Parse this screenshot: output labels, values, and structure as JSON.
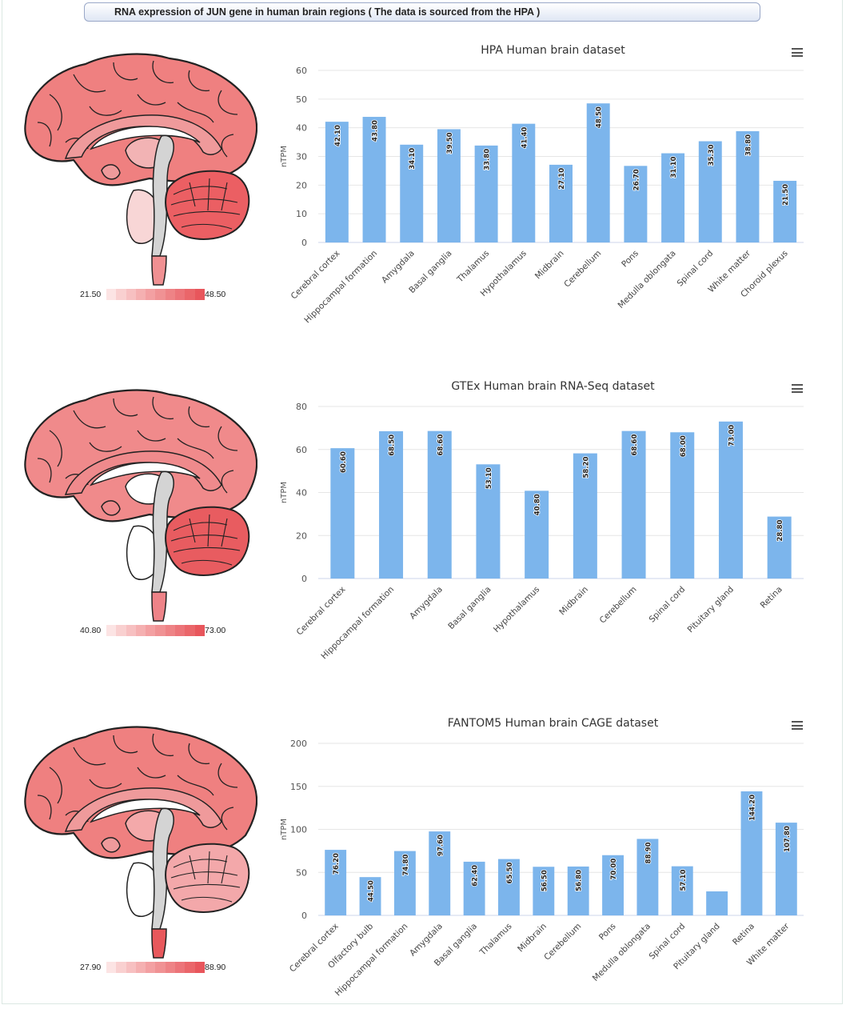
{
  "header": {
    "title": "RNA expression of JUN gene in human brain regions ( The data is sourced from the HPA )"
  },
  "colors": {
    "bar": "#7cb5ec",
    "bar_label": "#1f1f1f",
    "legend_low": "#fde3e3",
    "legend_high": "#e8565a"
  },
  "panels": [
    {
      "legend": {
        "min": "21.50",
        "max": "48.50"
      },
      "brain_fills": {
        "cortex": "#ef8080",
        "cerebellum": "#eb5f63",
        "inner": "#f2b3b4",
        "stem": "#ef9396",
        "spinal": "#f09092",
        "pons": "#f8d6d6",
        "small": "#ef9a9b"
      },
      "chart_data": {
        "type": "bar",
        "title": "HPA Human brain dataset",
        "ylabel": "nTPM",
        "ylim": [
          0,
          60
        ],
        "yticks": [
          0,
          10,
          20,
          30,
          40,
          50,
          60
        ],
        "categories": [
          "Cerebral cortex",
          "Hippocampal formation",
          "Amygdala",
          "Basal ganglia",
          "Thalamus",
          "Hypothalamus",
          "Midbrain",
          "Cerebellum",
          "Pons",
          "Medulla oblongata",
          "Spinal cord",
          "White matter",
          "Choroid plexus"
        ],
        "values": [
          42.1,
          43.8,
          34.1,
          39.5,
          33.8,
          41.4,
          27.1,
          48.5,
          26.7,
          31.1,
          35.3,
          38.8,
          21.5
        ],
        "labels": [
          "42.10",
          "43.80",
          "34.10",
          "39.50",
          "33.80",
          "41.40",
          "27.10",
          "48.50",
          "26.70",
          "31.10",
          "35.30",
          "38.80",
          "21.50"
        ]
      }
    },
    {
      "legend": {
        "min": "40.80",
        "max": "73.00"
      },
      "brain_fills": {
        "cortex": "#f08a8b",
        "cerebellum": "#e85c60",
        "inner": "#ffffff",
        "stem": "#f7c5c6",
        "spinal": "#ee8388",
        "pons": "#ffffff",
        "small": "#ef8a8c"
      },
      "chart_data": {
        "type": "bar",
        "title": "GTEx Human brain RNA-Seq dataset",
        "ylabel": "nTPM",
        "ylim": [
          0,
          80
        ],
        "yticks": [
          0,
          20,
          40,
          60,
          80
        ],
        "categories": [
          "Cerebral cortex",
          "Hippocampal formation",
          "Amygdala",
          "Basal ganglia",
          "Hypothalamus",
          "Midbrain",
          "Cerebellum",
          "Spinal cord",
          "Pituitary gland",
          "Retina"
        ],
        "values": [
          60.6,
          68.5,
          68.6,
          53.1,
          40.8,
          58.2,
          68.6,
          68.0,
          73.0,
          28.8
        ],
        "labels": [
          "60.60",
          "68.50",
          "68.60",
          "53.10",
          "40.80",
          "58.20",
          "68.60",
          "68.00",
          "73.00",
          "28.80"
        ]
      }
    },
    {
      "legend": {
        "min": "27.90",
        "max": "88.90"
      },
      "brain_fills": {
        "cortex": "#ef8080",
        "cerebellum": "#f3a8aa",
        "inner": "#f4a9aa",
        "stem": "#f7c6c7",
        "spinal": "#e8585c",
        "pons": "#ffffff",
        "small": "#ef9a9b"
      },
      "chart_data": {
        "type": "bar",
        "title": "FANTOM5 Human brain CAGE dataset",
        "ylabel": "nTPM",
        "ylim": [
          0,
          200
        ],
        "yticks": [
          0,
          50,
          100,
          150,
          200
        ],
        "categories": [
          "Cerebral cortex",
          "Olfactory bulb",
          "Hippocampal formation",
          "Amygdala",
          "Basal ganglia",
          "Thalamus",
          "Midbrain",
          "Cerebellum",
          "Pons",
          "Medulla oblongata",
          "Spinal cord",
          "Pituitary gland",
          "Retina",
          "White matter"
        ],
        "values": [
          76.2,
          44.5,
          74.8,
          97.6,
          62.4,
          65.5,
          56.5,
          56.8,
          70.0,
          88.9,
          57.1,
          27.9,
          144.2,
          107.8
        ],
        "labels": [
          "76.20",
          "44.50",
          "74.80",
          "97.60",
          "62.40",
          "65.50",
          "56.50",
          "56.80",
          "70.00",
          "88.90",
          "57.10",
          "",
          "144.20",
          "107.80"
        ]
      }
    }
  ]
}
